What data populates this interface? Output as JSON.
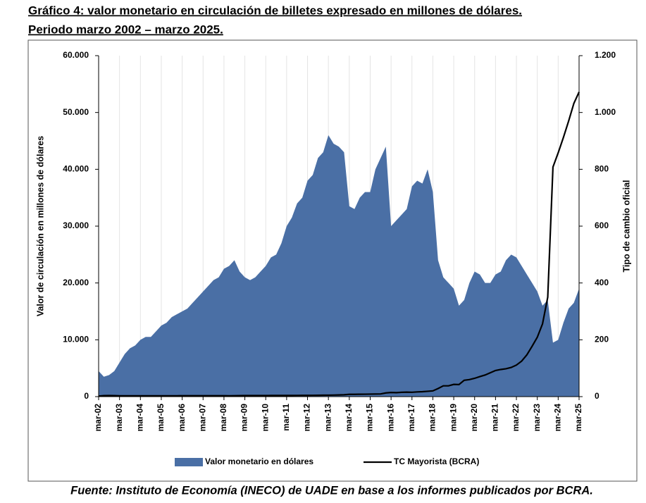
{
  "chart_data": {
    "type": "area_line",
    "title": "Gráfico 4: valor monetario en circulación de billetes expresado en millones de dólares.",
    "subtitle": "Periodo marzo 2002 – marzo 2025.",
    "y_label": "Valor de circulación en millones de dólares",
    "y2_label": "Tipo de cambio oficial",
    "source": "Fuente: Instituto de Economía (INECO) de UADE en base a los informes publicados por BCRA.",
    "categories": [
      "mar-02",
      null,
      null,
      null,
      "mar-03",
      null,
      null,
      null,
      "mar-04",
      null,
      null,
      null,
      "mar-05",
      null,
      null,
      null,
      "mar-06",
      null,
      null,
      null,
      "mar-07",
      null,
      null,
      null,
      "mar-08",
      null,
      null,
      null,
      "mar-09",
      null,
      null,
      null,
      "mar-10",
      null,
      null,
      null,
      "mar-11",
      null,
      null,
      null,
      "mar-12",
      null,
      null,
      null,
      "mar-13",
      null,
      null,
      null,
      "mar-14",
      null,
      null,
      null,
      "mar-15",
      null,
      null,
      null,
      "mar-16",
      null,
      null,
      null,
      "mar-17",
      null,
      null,
      null,
      "mar-18",
      null,
      null,
      null,
      "mar-19",
      null,
      null,
      null,
      "mar-20",
      null,
      null,
      null,
      "mar-21",
      null,
      null,
      null,
      "mar-22",
      null,
      null,
      null,
      "mar-23",
      null,
      null,
      null,
      "mar-24",
      null,
      null,
      null,
      "mar-25"
    ],
    "series": [
      {
        "name": "Valor monetario en dólares",
        "color": "#4a6fa5",
        "kind": "area",
        "axis": "y",
        "values": [
          4500,
          3500,
          3800,
          4500,
          6000,
          7500,
          8500,
          9000,
          10000,
          10500,
          10500,
          11500,
          12500,
          13000,
          14000,
          14500,
          15000,
          15500,
          16500,
          17500,
          18500,
          19500,
          20500,
          21000,
          22500,
          23000,
          24000,
          22000,
          21000,
          20500,
          21000,
          22000,
          23000,
          24500,
          25000,
          27000,
          30000,
          31500,
          34000,
          35000,
          38000,
          39000,
          42000,
          43000,
          46000,
          44500,
          44000,
          43000,
          33500,
          33000,
          35000,
          36000,
          36000,
          40000,
          42000,
          44000,
          30000,
          31000,
          32000,
          33000,
          37000,
          38000,
          37500,
          40000,
          36000,
          24000,
          21000,
          20000,
          19000,
          16000,
          17000,
          20000,
          22000,
          21500,
          20000,
          20000,
          21500,
          22000,
          24000,
          25000,
          24500,
          23000,
          21500,
          20000,
          18500,
          16000,
          17000,
          9500,
          10000,
          13000,
          15500,
          16500,
          19000
        ]
      },
      {
        "name": "TC Mayorista (BCRA)",
        "color": "#000000",
        "kind": "line",
        "axis": "y2",
        "values": [
          2,
          3.6,
          3.7,
          3.4,
          3.0,
          2.8,
          2.9,
          2.95,
          2.9,
          2.95,
          2.98,
          2.97,
          2.9,
          2.9,
          2.9,
          3.0,
          3.05,
          3.08,
          3.1,
          3.06,
          3.1,
          3.1,
          3.15,
          3.15,
          3.1,
          3.0,
          3.1,
          3.45,
          3.7,
          3.8,
          3.85,
          3.8,
          3.9,
          3.93,
          3.96,
          3.98,
          4.05,
          4.1,
          4.2,
          4.3,
          4.38,
          4.5,
          4.65,
          4.9,
          5.1,
          5.4,
          5.8,
          6.5,
          8.0,
          8.1,
          8.4,
          8.5,
          8.8,
          9.1,
          9.4,
          13,
          14.5,
          14.0,
          15.2,
          15.8,
          15.4,
          16.6,
          17.3,
          18.7,
          20.2,
          28.5,
          38,
          38,
          43,
          42.5,
          57.5,
          60,
          64.5,
          70.5,
          76,
          84,
          92,
          95.5,
          98,
          102.7,
          111,
          125,
          147,
          177,
          209,
          256,
          350,
          808,
          858,
          912,
          970,
          1032,
          1072
        ]
      }
    ],
    "ylim": [
      0,
      60000
    ],
    "yticks": [
      0,
      {
        "value": 10000,
        "label": "10.000"
      },
      {
        "value": 20000,
        "label": "20.000"
      },
      {
        "value": 30000,
        "label": "30.000"
      },
      {
        "value": 40000,
        "label": "40.000"
      },
      {
        "value": 50000,
        "label": "50.000"
      },
      {
        "value": 60000,
        "label": "60.000"
      }
    ],
    "y2lim": [
      0,
      1200
    ],
    "y2ticks": [
      0,
      200,
      400,
      600,
      800,
      {
        "value": 1000,
        "label": "1.000"
      },
      {
        "value": 1200,
        "label": "1.200"
      }
    ],
    "grid": true,
    "legend": "bottom"
  }
}
